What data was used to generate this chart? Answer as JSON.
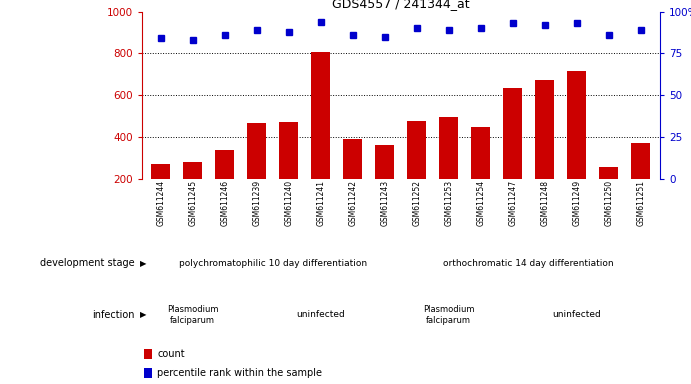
{
  "title": "GDS4557 / 241344_at",
  "samples": [
    "GSM611244",
    "GSM611245",
    "GSM611246",
    "GSM611239",
    "GSM611240",
    "GSM611241",
    "GSM611242",
    "GSM611243",
    "GSM611252",
    "GSM611253",
    "GSM611254",
    "GSM611247",
    "GSM611248",
    "GSM611249",
    "GSM611250",
    "GSM611251"
  ],
  "counts": [
    270,
    280,
    335,
    465,
    470,
    805,
    390,
    360,
    475,
    495,
    445,
    635,
    670,
    715,
    255,
    370
  ],
  "percentiles": [
    84,
    83,
    86,
    89,
    88,
    94,
    86,
    85,
    90,
    89,
    90,
    93,
    92,
    93,
    86,
    89
  ],
  "ylim_left": [
    200,
    1000
  ],
  "ylim_right": [
    0,
    100
  ],
  "yticks_left": [
    200,
    400,
    600,
    800,
    1000
  ],
  "yticks_right": [
    0,
    25,
    50,
    75,
    100
  ],
  "bar_color": "#cc0000",
  "dot_color": "#0000cc",
  "tick_area_color": "#cccccc",
  "dev_stage_color": "#66dd66",
  "infection_color": "#dd66dd",
  "dev_stage_labels": [
    "polychromatophilic 10 day differentiation",
    "orthochromatic 14 day differentiation"
  ],
  "infection_labels_left": [
    "Plasmodium\nfalciparum",
    "uninfected"
  ],
  "infection_labels_right": [
    "Plasmodium\nfalciparum",
    "uninfected"
  ],
  "legend_count_label": "count",
  "legend_pct_label": "percentile rank within the sample",
  "left_label_dev": "development stage",
  "left_label_inf": "infection"
}
